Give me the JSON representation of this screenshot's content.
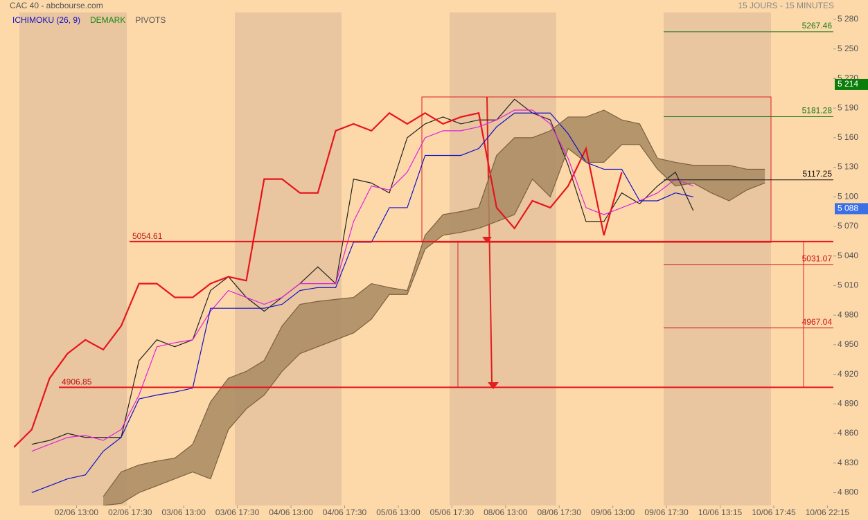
{
  "chart_data": {
    "type": "line",
    "title": "CAC 40 - abcbourse.com",
    "subtitle": "15 JOURS - 15 MINUTES",
    "legend": [
      {
        "label": "ICHIMOKU (26, 9)",
        "color": "#1010c8"
      },
      {
        "label": "DEMARK",
        "color": "#178a17"
      },
      {
        "label": "PIVOTS",
        "color": "#555555"
      }
    ],
    "x": [
      0,
      6,
      12,
      18,
      24,
      30,
      36,
      42,
      48,
      54,
      60,
      66,
      72,
      78,
      84,
      90,
      96,
      102,
      108,
      114,
      120,
      126,
      132,
      138,
      144,
      150,
      156,
      162,
      168,
      174,
      180,
      186,
      192,
      198,
      204,
      210,
      216,
      222,
      228,
      234,
      240,
      246,
      252,
      258
    ],
    "xlim": [
      0,
      275
    ],
    "xticks": [
      {
        "value": 21,
        "label": "02/06 13:00"
      },
      {
        "value": 39,
        "label": "02/06 17:30"
      },
      {
        "value": 57,
        "label": "03/06 13:00"
      },
      {
        "value": 75,
        "label": "03/06 17:30"
      },
      {
        "value": 93,
        "label": "04/06 13:00"
      },
      {
        "value": 111,
        "label": "04/06 17:30"
      },
      {
        "value": 129,
        "label": "05/06 13:00"
      },
      {
        "value": 147,
        "label": "05/06 17:30"
      },
      {
        "value": 165,
        "label": "08/06 13:00"
      },
      {
        "value": 183,
        "label": "08/06 17:30"
      },
      {
        "value": 201,
        "label": "09/06 13:00"
      },
      {
        "value": 219,
        "label": "09/06 17:30"
      },
      {
        "value": 237,
        "label": "10/06 13:15"
      },
      {
        "value": 255,
        "label": "10/06 17:45"
      },
      {
        "value": 273,
        "label": "10/06 22:15"
      }
    ],
    "ylim": [
      4787,
      5287
    ],
    "yticks": [
      {
        "value": 4800,
        "label": "4 800"
      },
      {
        "value": 4830,
        "label": "4 830"
      },
      {
        "value": 4860,
        "label": "4 860"
      },
      {
        "value": 4890,
        "label": "4 890"
      },
      {
        "value": 4920,
        "label": "4 920"
      },
      {
        "value": 4950,
        "label": "4 950"
      },
      {
        "value": 4980,
        "label": "4 980"
      },
      {
        "value": 5010,
        "label": "5 010"
      },
      {
        "value": 5040,
        "label": "5 040"
      },
      {
        "value": 5070,
        "label": "5 070"
      },
      {
        "value": 5100,
        "label": "5 100"
      },
      {
        "value": 5130,
        "label": "5 130"
      },
      {
        "value": 5160,
        "label": "5 160"
      },
      {
        "value": 5190,
        "label": "5 190"
      },
      {
        "value": 5220,
        "label": "5 220"
      },
      {
        "value": 5250,
        "label": "5 250"
      },
      {
        "value": 5280,
        "label": "5 280"
      }
    ],
    "series": [
      {
        "color": "#222222",
        "values": [
          null,
          4849,
          4853,
          4860,
          4856,
          4856,
          4856,
          4934,
          4955,
          4948,
          4955,
          5005,
          5019,
          4998,
          4984,
          4998,
          5012,
          5029,
          5012,
          5118,
          5114,
          5104,
          5160,
          5174,
          5181,
          5174,
          5178,
          5178,
          5199,
          5185,
          5178,
          5132,
          5075,
          5075,
          5104,
          5093,
          5111,
          5125,
          5086,
          null,
          null,
          null,
          null,
          null
        ]
      },
      {
        "color": "#e8141c",
        "values": [
          4846,
          4864,
          4916,
          4941,
          4955,
          4945,
          4969,
          5012,
          5012,
          4998,
          4998,
          5012,
          5019,
          5015,
          5118,
          5118,
          5104,
          5104,
          5167,
          5174,
          5167,
          5185,
          5174,
          5185,
          5174,
          5181,
          5185,
          5089,
          5068,
          5096,
          5089,
          5111,
          5149,
          5061,
          5125,
          null,
          null,
          null,
          null,
          null,
          null,
          null,
          null,
          null
        ]
      },
      {
        "color": "#e020e0",
        "values": [
          null,
          4842,
          4849,
          4856,
          4858,
          4853,
          4864,
          4899,
          4948,
          4952,
          4955,
          4984,
          5005,
          4998,
          4991,
          4998,
          5012,
          5012,
          5012,
          5075,
          5111,
          5107,
          5125,
          5160,
          5167,
          5167,
          5171,
          5178,
          5188,
          5188,
          5174,
          5139,
          5089,
          5082,
          5089,
          5096,
          5104,
          5118,
          5111,
          null,
          null,
          null,
          null,
          null
        ]
      },
      {
        "color": "#1010c8",
        "values": [
          null,
          4800,
          4807,
          4814,
          4818,
          4842,
          4856,
          4895,
          4899,
          4902,
          4906,
          4987,
          4987,
          4987,
          4987,
          4991,
          5005,
          5008,
          5008,
          5054,
          5054,
          5089,
          5089,
          5142,
          5142,
          5142,
          5149,
          5171,
          5185,
          5185,
          5185,
          5164,
          5135,
          5128,
          5128,
          5096,
          5096,
          5104,
          5100,
          null,
          null,
          null,
          null,
          null
        ]
      },
      {
        "color": "#7a6040",
        "values": [
          null,
          null,
          null,
          null,
          null,
          4796,
          4821,
          4828,
          4832,
          4835,
          4849,
          4892,
          4916,
          4923,
          4934,
          4969,
          4991,
          4994,
          4996,
          4998,
          5012,
          5008,
          5005,
          5061,
          5082,
          5085,
          5089,
          5142,
          5160,
          5160,
          5167,
          5181,
          5181,
          5188,
          5178,
          5174,
          5139,
          5135,
          5132,
          5132,
          5132,
          5128,
          5128,
          null
        ]
      },
      {
        "color": "#7a6040",
        "values": [
          null,
          null,
          null,
          null,
          null,
          4787,
          4789,
          4800,
          4807,
          4814,
          4821,
          4814,
          4864,
          4885,
          4899,
          4923,
          4941,
          4948,
          4955,
          4962,
          4976,
          5001,
          5001,
          5047,
          5061,
          5064,
          5068,
          5075,
          5082,
          5118,
          5100,
          5149,
          5135,
          5135,
          5153,
          5153,
          5128,
          5111,
          5114,
          5104,
          5096,
          5107,
          5114,
          null
        ]
      }
    ],
    "cloud_color": "#a88a62",
    "pivots": [
      {
        "value": 5267.46,
        "color": "#1d7a1d"
      },
      {
        "value": 5181.28,
        "color": "#1d7a1d"
      },
      {
        "value": 5117.25,
        "color": "#111111"
      },
      {
        "value": 5031.07,
        "color": "#d01010"
      },
      {
        "value": 4967.04,
        "color": "#d01010"
      }
    ],
    "supports": [
      {
        "value": 5054.61,
        "color": "#e8141c"
      },
      {
        "value": 4906.85,
        "color": "#e8141c"
      }
    ],
    "price_badges": [
      {
        "value": 5214,
        "label": "5 214",
        "color": "#0b7d0b"
      },
      {
        "value": 5088,
        "label": "5 088",
        "color": "#3b6fe6"
      }
    ]
  }
}
